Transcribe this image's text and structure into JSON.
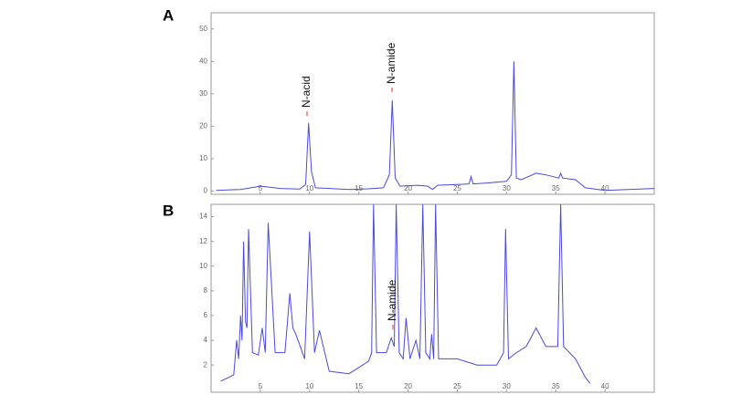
{
  "chart_data": [
    {
      "type": "line",
      "title": "A",
      "annotations": [
        "N-acid",
        "N-amide"
      ],
      "x": [
        0.5,
        3,
        5,
        6,
        7,
        9,
        9.6,
        9.9,
        10.2,
        10.6,
        12,
        14,
        16,
        17.5,
        18.1,
        18.4,
        18.7,
        19.2,
        21,
        22,
        22.5,
        23,
        25,
        26.2,
        26.4,
        26.6,
        28,
        30,
        30.5,
        30.75,
        31,
        31.5,
        33,
        34,
        35.3,
        35.5,
        35.7,
        37,
        38,
        40,
        45
      ],
      "series": [
        {
          "color": "#4a4adc",
          "values": [
            0.2,
            0.5,
            1.5,
            1.2,
            0.8,
            0.6,
            2,
            21,
            6,
            1,
            0.8,
            0.5,
            0.7,
            1,
            5,
            28,
            4,
            1.5,
            1.8,
            1.5,
            0.5,
            1.8,
            2,
            2.2,
            4.5,
            2.2,
            2.5,
            3,
            5,
            40,
            4,
            3.5,
            5.5,
            5,
            4,
            5.5,
            4,
            3.5,
            1,
            0.2,
            0.8
          ]
        }
      ],
      "xlim": [
        0,
        45
      ],
      "xticks": [
        5,
        10,
        15,
        20,
        25,
        30,
        35,
        40
      ],
      "ylim": [
        -1,
        55
      ],
      "yticks": [
        0,
        10,
        20,
        30,
        40,
        50
      ]
    },
    {
      "type": "line",
      "title": "B",
      "annotations": [
        "N-amide"
      ],
      "x": [
        1,
        2.3,
        2.6,
        2.8,
        3,
        3.15,
        3.3,
        3.5,
        3.65,
        3.8,
        4.2,
        4.8,
        5.2,
        5.5,
        5.8,
        6.5,
        7.5,
        8,
        8.3,
        8.6,
        9.5,
        10,
        10.5,
        11,
        12,
        14,
        16,
        16.3,
        16.5,
        16.8,
        17.8,
        18.3,
        18.6,
        18.8,
        19.1,
        19.5,
        19.8,
        20.2,
        20.8,
        21.2,
        21.5,
        21.8,
        22.2,
        22.4,
        22.6,
        22.8,
        23.1,
        25,
        27,
        29,
        29.7,
        29.9,
        30.2,
        31,
        32,
        33,
        34,
        35.2,
        35.5,
        35.8,
        37,
        38,
        38.5
      ],
      "series": [
        {
          "color": "#4a4adc",
          "values": [
            0.7,
            1.2,
            4,
            2.5,
            6,
            4,
            12,
            5.5,
            5,
            13,
            3,
            2.8,
            5,
            3,
            13.5,
            3,
            3,
            7.8,
            5,
            4.5,
            2.5,
            12.8,
            3,
            4.8,
            1.5,
            1.3,
            2.3,
            3,
            15,
            3,
            3,
            4.2,
            3.5,
            15,
            3,
            2.5,
            5.8,
            2.5,
            4,
            2.5,
            15,
            3,
            2.5,
            4.5,
            2.5,
            15,
            2.5,
            2.5,
            2,
            2,
            3,
            13,
            2.5,
            3,
            3.5,
            5,
            3.5,
            3.5,
            15,
            3.5,
            2.5,
            1,
            0.5
          ]
        }
      ],
      "xlim": [
        0,
        45
      ],
      "xticks": [
        5,
        10,
        15,
        20,
        25,
        30,
        35,
        40
      ],
      "ylim": [
        -0.2,
        15
      ],
      "yticks": [
        2,
        4,
        6,
        8,
        10,
        12,
        14
      ]
    }
  ]
}
